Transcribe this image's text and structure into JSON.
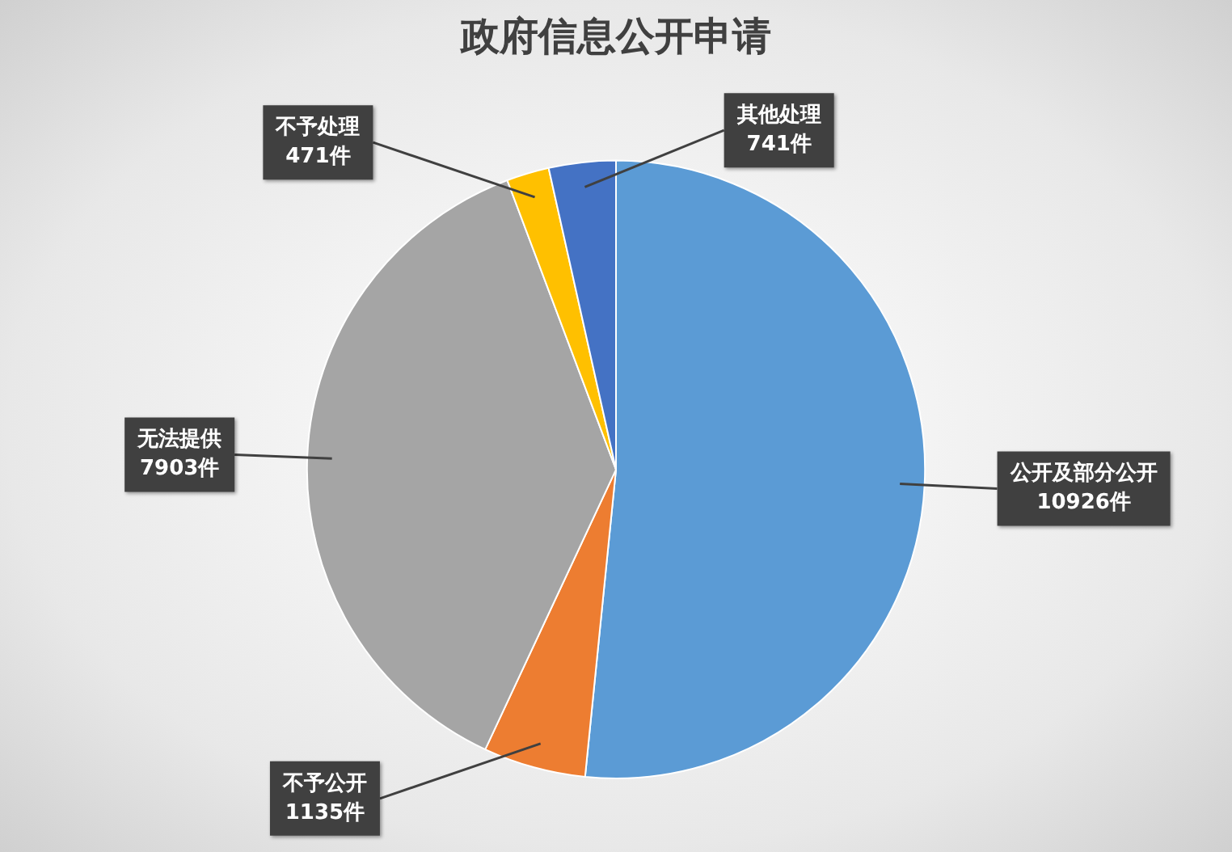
{
  "chart_data": {
    "type": "pie",
    "title": "政府信息公开申请",
    "categories": [
      "公开及部分公开",
      "不予公开",
      "无法提供",
      "不予处理",
      "其他处理"
    ],
    "values": [
      10926,
      1135,
      7903,
      471,
      741
    ],
    "value_labels": [
      "10926件",
      "1135件",
      "7903件",
      "471件",
      "741件"
    ],
    "colors": [
      "#5b9bd5",
      "#ed7d31",
      "#a5a5a5",
      "#ffc000",
      "#4472c4"
    ],
    "legend": false
  }
}
